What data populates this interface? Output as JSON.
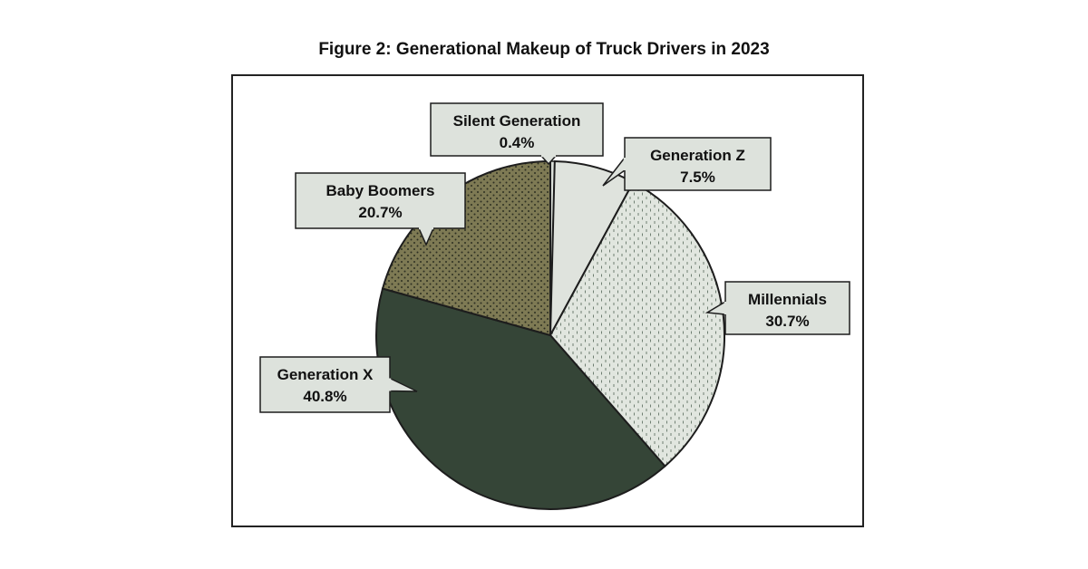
{
  "chart_data": {
    "type": "pie",
    "title": "Figure 2: Generational Makeup of Truck Drivers in 2023",
    "slices": [
      {
        "label": "Silent Generation",
        "value": 0.4,
        "value_label": "0.4%",
        "color": "#dbe0da",
        "pattern": "none"
      },
      {
        "label": "Generation Z",
        "value": 7.5,
        "value_label": "7.5%",
        "color": "#dfe3dd",
        "pattern": "none"
      },
      {
        "label": "Millennials",
        "value": 30.7,
        "value_label": "30.7%",
        "color": "#e1e6df",
        "pattern": "dash"
      },
      {
        "label": "Generation X",
        "value": 40.8,
        "value_label": "40.8%",
        "color": "#354537",
        "pattern": "none"
      },
      {
        "label": "Baby Boomers",
        "value": 20.7,
        "value_label": "20.7%",
        "color": "#7e7a54",
        "pattern": "dots"
      }
    ],
    "start": "12 o'clock",
    "direction": "clockwise"
  }
}
